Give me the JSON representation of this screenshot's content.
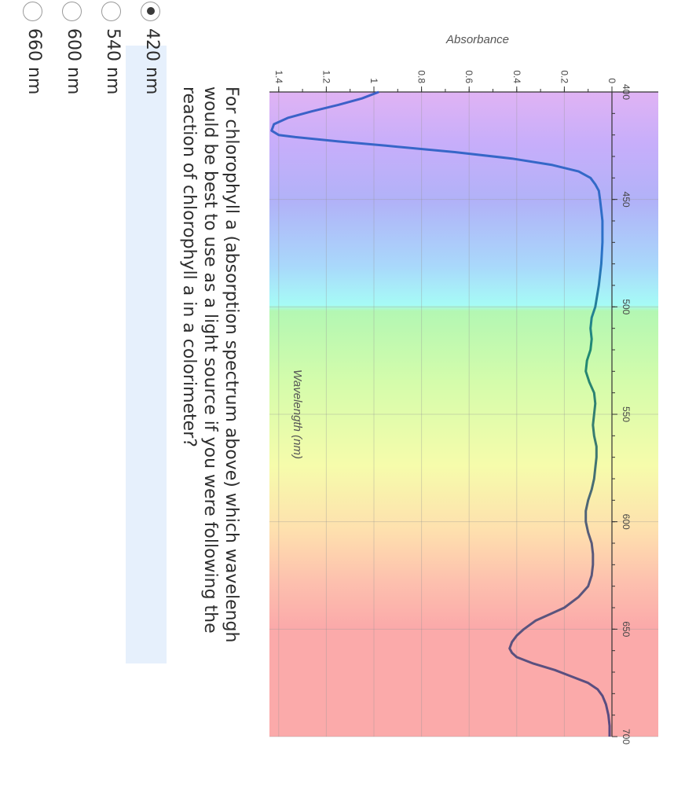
{
  "chart_data": {
    "type": "line",
    "xlabel": "Wavelength (nm)",
    "ylabel": "Absorbance",
    "xlim": [
      400,
      700
    ],
    "ylim": [
      0,
      1.45
    ],
    "x_ticks": [
      400,
      450,
      500,
      550,
      600,
      650,
      700
    ],
    "y_ticks": [
      0,
      0.2,
      0.4,
      0.6,
      0.8,
      1,
      1.2,
      1.4
    ],
    "grid": true,
    "background": "visible light spectrum gradient (violet to red)",
    "series": [
      {
        "x": [
          400,
          403,
          406,
          409,
          412,
          415,
          418,
          420,
          421,
          423,
          425,
          428,
          431,
          434,
          437,
          440,
          443,
          446,
          450,
          455,
          460,
          470,
          480,
          490,
          500,
          505,
          510,
          515,
          520,
          525,
          530,
          535,
          540,
          545,
          550,
          555,
          560,
          565,
          570,
          575,
          580,
          585,
          590,
          595,
          600,
          605,
          610,
          615,
          620,
          625,
          630,
          635,
          640,
          643,
          646,
          650,
          653,
          656,
          659,
          661,
          663,
          666,
          669,
          672,
          675,
          678,
          681,
          685,
          690,
          695,
          700
        ],
        "y": [
          0.98,
          1.05,
          1.15,
          1.26,
          1.36,
          1.42,
          1.43,
          1.4,
          1.33,
          1.15,
          0.95,
          0.66,
          0.42,
          0.25,
          0.14,
          0.09,
          0.07,
          0.055,
          0.05,
          0.045,
          0.04,
          0.04,
          0.045,
          0.055,
          0.07,
          0.085,
          0.09,
          0.085,
          0.09,
          0.105,
          0.11,
          0.095,
          0.075,
          0.07,
          0.075,
          0.08,
          0.075,
          0.065,
          0.065,
          0.07,
          0.075,
          0.085,
          0.1,
          0.11,
          0.11,
          0.1,
          0.085,
          0.08,
          0.08,
          0.085,
          0.1,
          0.14,
          0.2,
          0.26,
          0.32,
          0.37,
          0.4,
          0.42,
          0.43,
          0.42,
          0.4,
          0.33,
          0.24,
          0.17,
          0.1,
          0.06,
          0.04,
          0.025,
          0.015,
          0.01,
          0.01
        ]
      }
    ]
  },
  "question": {
    "text": "For chlorophyll a (absorption spectrum above) which wavelengh would be best to use as a light source if you were following the reaction of chlorophyll a in a colorimeter?"
  },
  "options": [
    {
      "label": "420 nm",
      "selected": true
    },
    {
      "label": "540 nm",
      "selected": false
    },
    {
      "label": "600 nm",
      "selected": false
    },
    {
      "label": "660 nm",
      "selected": false
    }
  ]
}
